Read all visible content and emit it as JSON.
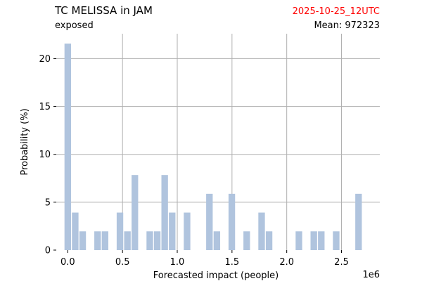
{
  "header": {
    "title": "TC MELISSA in JAM",
    "subtitle": "exposed",
    "timestamp": "2025-10-25_12UTC",
    "mean_text": "Mean: 972323"
  },
  "colors": {
    "bar": "#b0c4de",
    "timestamp": "#ff0000",
    "grid": "#b0b0b0",
    "text": "#000000"
  },
  "chart_data": {
    "type": "bar",
    "title": "TC MELISSA in JAM",
    "subtitle": "exposed",
    "xlabel": "Forecasted impact (people)",
    "ylabel": "Probability (%)",
    "x_offset_text": "1e6",
    "x_scale": 1000000,
    "xlim": [
      -0.105,
      2.85
    ],
    "ylim": [
      0,
      22.6
    ],
    "xticks": [
      0.0,
      0.5,
      1.0,
      1.5,
      2.0,
      2.5
    ],
    "xtick_labels": [
      "0.0",
      "0.5",
      "1.0",
      "1.5",
      "2.0",
      "2.5"
    ],
    "yticks": [
      0,
      5,
      10,
      15,
      20
    ],
    "ytick_labels": [
      "0",
      "5",
      "10",
      "15",
      "20"
    ],
    "grid": true,
    "bin_width": 0.0681,
    "bins": [
      {
        "x": 0.0,
        "y": 21.57
      },
      {
        "x": 0.0681,
        "y": 3.92
      },
      {
        "x": 0.1362,
        "y": 1.96
      },
      {
        "x": 0.2043,
        "y": 0
      },
      {
        "x": 0.2724,
        "y": 1.96
      },
      {
        "x": 0.3405,
        "y": 1.96
      },
      {
        "x": 0.4086,
        "y": 0
      },
      {
        "x": 0.4767,
        "y": 3.92
      },
      {
        "x": 0.5448,
        "y": 1.96
      },
      {
        "x": 0.6129,
        "y": 7.84
      },
      {
        "x": 0.681,
        "y": 0
      },
      {
        "x": 0.7491,
        "y": 1.96
      },
      {
        "x": 0.8172,
        "y": 1.96
      },
      {
        "x": 0.8853,
        "y": 7.84
      },
      {
        "x": 0.9534,
        "y": 3.92
      },
      {
        "x": 1.0215,
        "y": 0
      },
      {
        "x": 1.0896,
        "y": 3.92
      },
      {
        "x": 1.1577,
        "y": 0
      },
      {
        "x": 1.2258,
        "y": 0
      },
      {
        "x": 1.2939,
        "y": 5.88
      },
      {
        "x": 1.362,
        "y": 1.96
      },
      {
        "x": 1.4301,
        "y": 0
      },
      {
        "x": 1.4982,
        "y": 5.88
      },
      {
        "x": 1.5663,
        "y": 0
      },
      {
        "x": 1.6344,
        "y": 1.96
      },
      {
        "x": 1.7025,
        "y": 0
      },
      {
        "x": 1.7706,
        "y": 3.92
      },
      {
        "x": 1.8387,
        "y": 1.96
      },
      {
        "x": 1.9068,
        "y": 0
      },
      {
        "x": 1.9749,
        "y": 0
      },
      {
        "x": 2.043,
        "y": 0
      },
      {
        "x": 2.1111,
        "y": 1.96
      },
      {
        "x": 2.1792,
        "y": 0
      },
      {
        "x": 2.2473,
        "y": 1.96
      },
      {
        "x": 2.3154,
        "y": 1.96
      },
      {
        "x": 2.3835,
        "y": 0
      },
      {
        "x": 2.4516,
        "y": 1.96
      },
      {
        "x": 2.5197,
        "y": 0
      },
      {
        "x": 2.5878,
        "y": 0
      },
      {
        "x": 2.6559,
        "y": 5.88
      }
    ]
  }
}
